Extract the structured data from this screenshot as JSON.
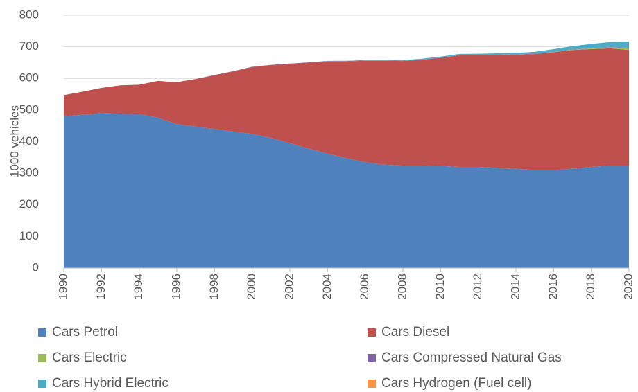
{
  "chart_data": {
    "type": "stacked_area",
    "y_label": "1000 vehicles",
    "x": [
      1990,
      1991,
      1992,
      1993,
      1994,
      1995,
      1996,
      1997,
      1998,
      1999,
      2000,
      2001,
      2002,
      2003,
      2004,
      2005,
      2006,
      2007,
      2008,
      2009,
      2010,
      2011,
      2012,
      2013,
      2014,
      2015,
      2016,
      2017,
      2018,
      2019,
      2020
    ],
    "series": [
      {
        "name": "Cars Petrol",
        "color": "#4f81bd",
        "values": [
          480,
          485,
          490,
          488,
          487,
          476,
          455,
          448,
          440,
          432,
          424,
          412,
          395,
          378,
          362,
          348,
          335,
          327,
          324,
          324,
          323,
          320,
          320,
          317,
          314,
          310,
          310,
          314,
          320,
          324,
          324
        ]
      },
      {
        "name": "Cars Diesel",
        "color": "#c0504d",
        "values": [
          67,
          73,
          80,
          90,
          93,
          116,
          133,
          150,
          170,
          190,
          212,
          230,
          251,
          272,
          292,
          306,
          321,
          329,
          331,
          335,
          342,
          353,
          353,
          357,
          361,
          367,
          373,
          376,
          373,
          371,
          366
        ]
      },
      {
        "name": "Cars Electric",
        "color": "#9bbb59",
        "values": [
          0,
          0,
          0,
          0,
          0,
          0,
          0,
          0,
          0,
          0,
          0,
          0,
          0,
          0,
          0,
          0,
          0,
          0,
          0,
          0,
          0,
          0,
          0,
          0,
          0,
          0,
          0.5,
          1,
          2,
          3,
          6
        ]
      },
      {
        "name": "Cars Compressed Natural Gas",
        "color": "#8064a2",
        "values": [
          0,
          0,
          0,
          0,
          0,
          0,
          0,
          0,
          1,
          1,
          1,
          1,
          1,
          1,
          1,
          1,
          1,
          1,
          1,
          1,
          1,
          1,
          1,
          1,
          1,
          1,
          1,
          1,
          1,
          1,
          1
        ]
      },
      {
        "name": "Cars Hybrid Electric",
        "color": "#4bacc6",
        "values": [
          0,
          0,
          0,
          0,
          0,
          0,
          0,
          0,
          0,
          0,
          0,
          0,
          0,
          0,
          0.5,
          1,
          1,
          1.5,
          2,
          2.5,
          3,
          3.5,
          4,
          4.5,
          5,
          6,
          8,
          10,
          13,
          16,
          20
        ]
      },
      {
        "name": "Cars Hydrogen (Fuel cell)",
        "color": "#f79646",
        "values": [
          0,
          0,
          0,
          0,
          0,
          0,
          0,
          0,
          0,
          0,
          0,
          0,
          0,
          0,
          0,
          0,
          0,
          0,
          0,
          0,
          0,
          0,
          0,
          0,
          0,
          0,
          0,
          0,
          0,
          0,
          0
        ]
      }
    ],
    "xlim": [
      1990,
      2020
    ],
    "xticks": [
      1990,
      1992,
      1994,
      1996,
      1998,
      2000,
      2002,
      2004,
      2006,
      2008,
      2010,
      2012,
      2014,
      2016,
      2018,
      2020
    ],
    "ylim": [
      0,
      800
    ],
    "yticks": [
      0,
      100,
      200,
      300,
      400,
      500,
      600,
      700,
      800
    ],
    "grid": true
  }
}
